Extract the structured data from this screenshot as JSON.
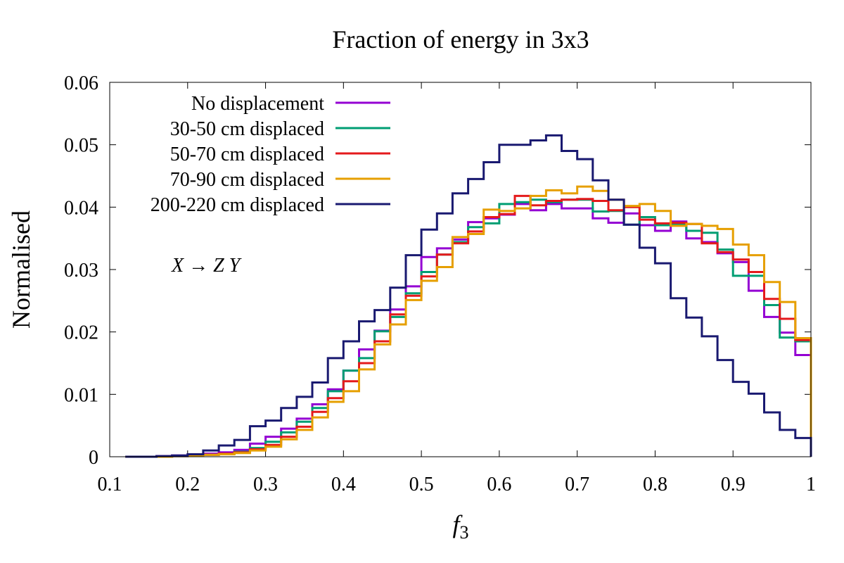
{
  "chart_data": {
    "type": "line",
    "style": "step-histogram",
    "title": "Fraction of energy in 3x3",
    "xlabel_main": "f",
    "xlabel_sub": "3",
    "ylabel": "Normalised",
    "xlim": [
      0.1,
      1.0
    ],
    "ylim": [
      0,
      0.06
    ],
    "xticks": [
      "0.1",
      "0.2",
      "0.3",
      "0.4",
      "0.5",
      "0.6",
      "0.7",
      "0.8",
      "0.9",
      "1"
    ],
    "yticks": [
      "0",
      "0.01",
      "0.02",
      "0.03",
      "0.04",
      "0.05",
      "0.06"
    ],
    "grid": false,
    "legend_position": "top-left",
    "annotation": "X → Z Y",
    "bin_edges": [
      0.12,
      0.14,
      0.16,
      0.18,
      0.2,
      0.22,
      0.24,
      0.26,
      0.28,
      0.3,
      0.32,
      0.34,
      0.36,
      0.38,
      0.4,
      0.42,
      0.44,
      0.46,
      0.48,
      0.5,
      0.52,
      0.54,
      0.56,
      0.58,
      0.6,
      0.62,
      0.64,
      0.66,
      0.68,
      0.7,
      0.72,
      0.74,
      0.76,
      0.78,
      0.8,
      0.82,
      0.84,
      0.86,
      0.88,
      0.9,
      0.92,
      0.94,
      0.96,
      0.98,
      1.0
    ],
    "series": [
      {
        "name": "No displacement",
        "color": "#9400d3",
        "values": [
          0,
          0,
          0.0001,
          0.0002,
          0.0003,
          0.0005,
          0.0007,
          0.0011,
          0.0021,
          0.0032,
          0.0045,
          0.0061,
          0.0084,
          0.0108,
          0.0138,
          0.0172,
          0.0202,
          0.0236,
          0.0273,
          0.032,
          0.0334,
          0.0348,
          0.0376,
          0.0382,
          0.0388,
          0.0405,
          0.0395,
          0.0405,
          0.0398,
          0.0398,
          0.0382,
          0.0375,
          0.039,
          0.0371,
          0.0362,
          0.0377,
          0.035,
          0.0344,
          0.0326,
          0.0312,
          0.0266,
          0.0224,
          0.0199,
          0.0163
        ]
      },
      {
        "name": "30-50 cm displaced",
        "color": "#009e73",
        "values": [
          0,
          0,
          0,
          0.0001,
          0.0002,
          0.0003,
          0.0005,
          0.0008,
          0.0014,
          0.0024,
          0.0039,
          0.0056,
          0.0078,
          0.0105,
          0.0138,
          0.0158,
          0.0201,
          0.0224,
          0.0262,
          0.0296,
          0.0324,
          0.0344,
          0.0368,
          0.0374,
          0.0405,
          0.0408,
          0.0412,
          0.0408,
          0.0412,
          0.0412,
          0.0393,
          0.0394,
          0.0372,
          0.0384,
          0.0371,
          0.0372,
          0.0362,
          0.0359,
          0.0332,
          0.029,
          0.029,
          0.0243,
          0.0191,
          0.0185
        ]
      },
      {
        "name": "50-70 cm displaced",
        "color": "#e41a1c",
        "values": [
          0,
          0,
          0,
          0.0001,
          0.0002,
          0.0003,
          0.0005,
          0.0007,
          0.0012,
          0.0019,
          0.0032,
          0.0048,
          0.0072,
          0.0094,
          0.0121,
          0.015,
          0.0185,
          0.0228,
          0.0258,
          0.0289,
          0.0324,
          0.0342,
          0.0361,
          0.0384,
          0.0389,
          0.0418,
          0.0403,
          0.041,
          0.0412,
          0.0413,
          0.041,
          0.0395,
          0.04,
          0.038,
          0.0374,
          0.0375,
          0.0373,
          0.0342,
          0.0328,
          0.0316,
          0.0296,
          0.0253,
          0.0221,
          0.0187
        ]
      },
      {
        "name": "70-90 cm displaced",
        "color": "#e69f00",
        "values": [
          0,
          0,
          0,
          0.0001,
          0.0002,
          0.0003,
          0.0004,
          0.0006,
          0.001,
          0.0016,
          0.0028,
          0.0043,
          0.0063,
          0.0088,
          0.0105,
          0.014,
          0.018,
          0.0212,
          0.0251,
          0.0282,
          0.0304,
          0.0352,
          0.0357,
          0.0396,
          0.0394,
          0.0398,
          0.0418,
          0.0427,
          0.0422,
          0.0433,
          0.0426,
          0.0412,
          0.0402,
          0.0405,
          0.0394,
          0.037,
          0.0373,
          0.037,
          0.0365,
          0.034,
          0.0323,
          0.028,
          0.0248,
          0.019
        ]
      },
      {
        "name": "200-220 cm displaced",
        "color": "#191970",
        "values": [
          0,
          0,
          0.0001,
          0.0002,
          0.0004,
          0.001,
          0.0018,
          0.0027,
          0.0049,
          0.0058,
          0.0078,
          0.0096,
          0.0119,
          0.0158,
          0.0185,
          0.0217,
          0.0235,
          0.0271,
          0.0323,
          0.0364,
          0.039,
          0.0422,
          0.0445,
          0.0472,
          0.05,
          0.05,
          0.0507,
          0.0515,
          0.049,
          0.0477,
          0.0443,
          0.0412,
          0.0372,
          0.0335,
          0.031,
          0.0254,
          0.0223,
          0.0193,
          0.0155,
          0.012,
          0.0101,
          0.0071,
          0.0043,
          0.003
        ]
      }
    ]
  }
}
